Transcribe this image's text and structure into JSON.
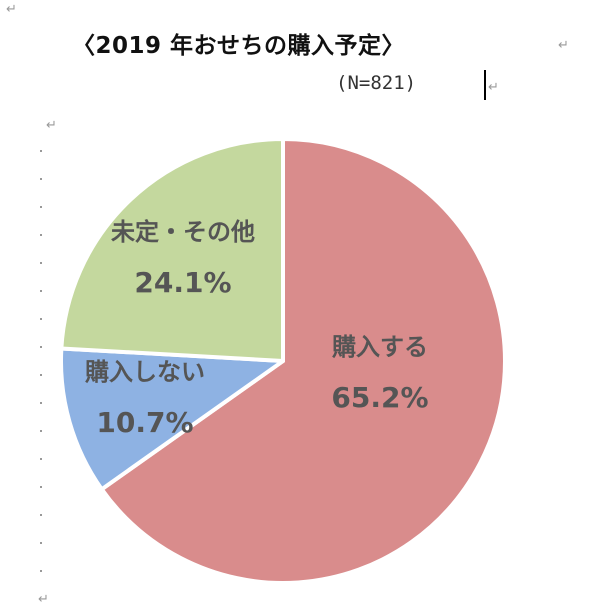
{
  "chart_data": {
    "type": "pie",
    "title": "〈2019 年おせちの購入予定〉",
    "subtitle": "(N=821)",
    "slices": [
      {
        "label": "購入する",
        "value": 65.2,
        "value_label": "65.2%",
        "color": "#d98c8c"
      },
      {
        "label": "購入しない",
        "value": 10.7,
        "value_label": "10.7%",
        "color": "#8eb2e3"
      },
      {
        "label": "未定・その他",
        "value": 24.1,
        "value_label": "24.1%",
        "color": "#c4d89e"
      }
    ],
    "start_angle_deg": 0,
    "direction": "clockwise"
  },
  "colors": {
    "border": "#ffffff",
    "label_text": "#555555"
  },
  "marks": {
    "return_mark": "↵"
  }
}
